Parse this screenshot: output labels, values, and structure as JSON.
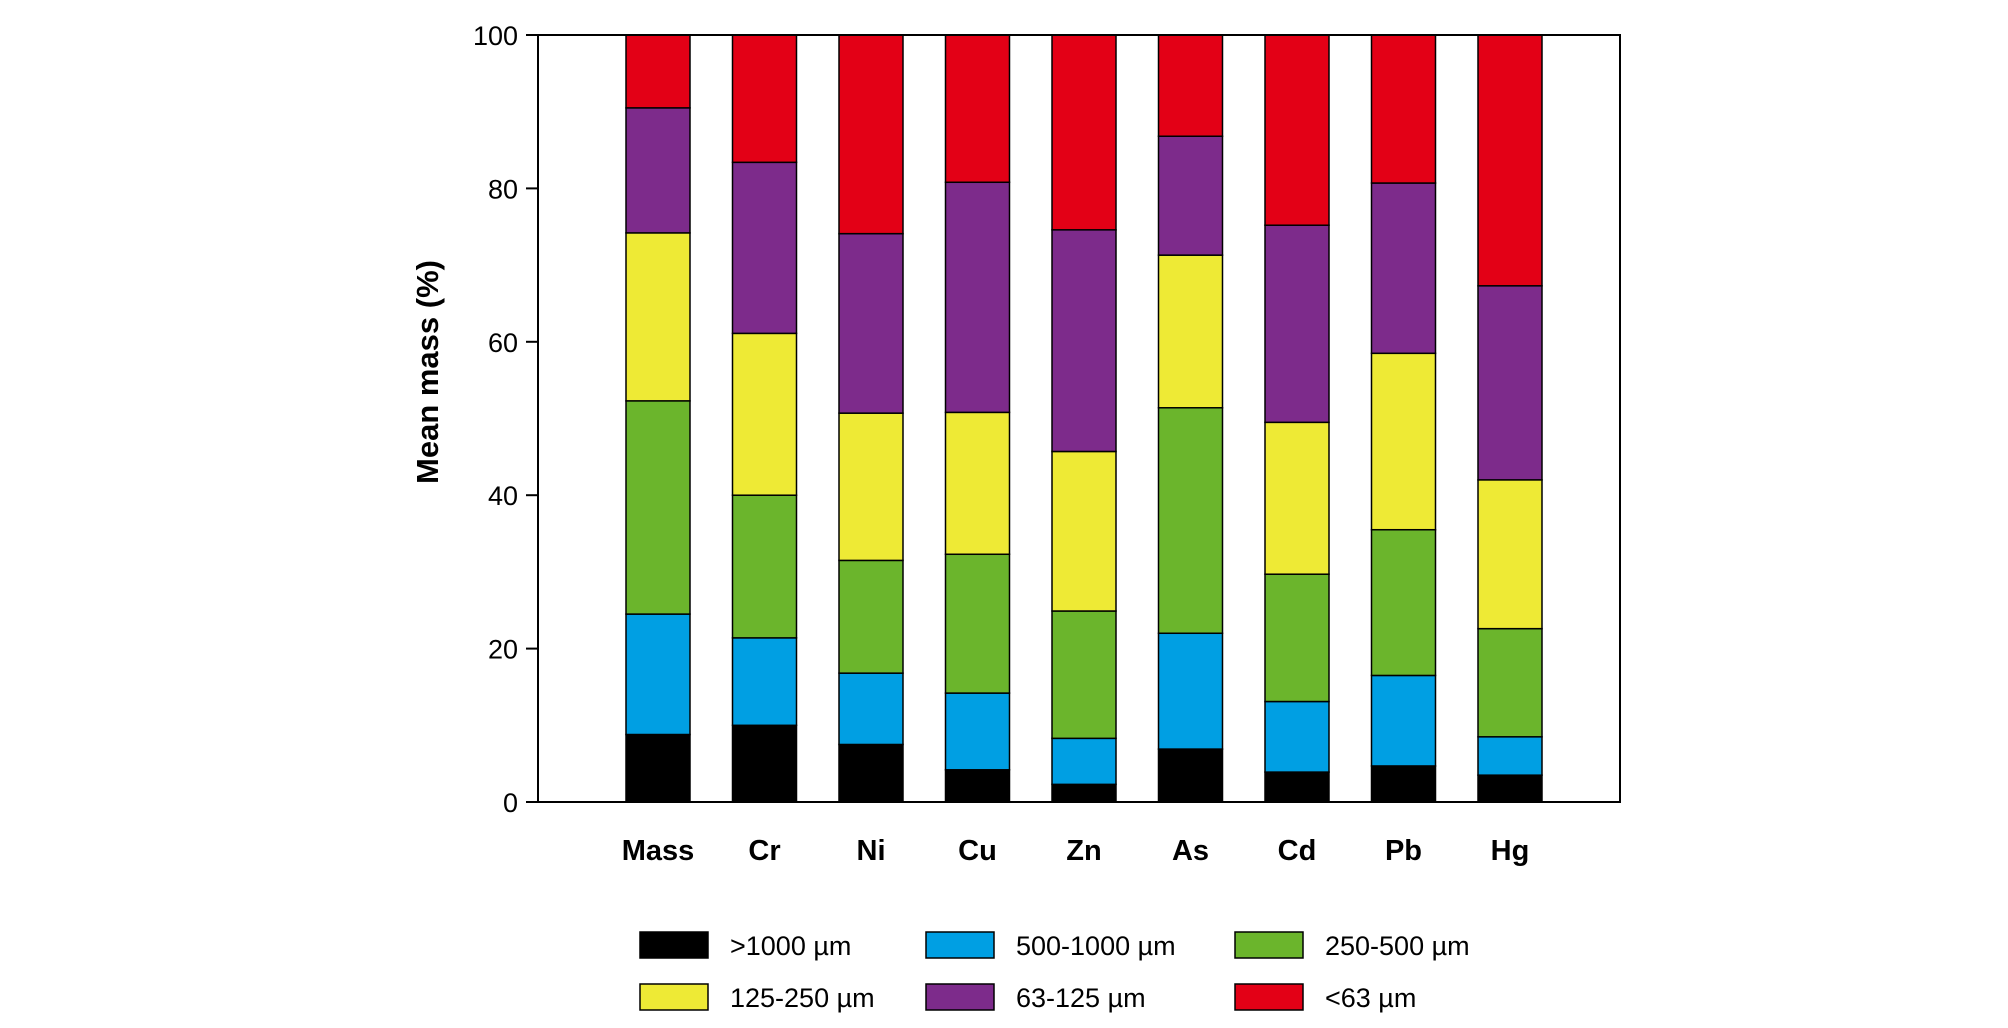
{
  "chart_data": {
    "type": "bar",
    "stacked": true,
    "title": "",
    "xlabel": "",
    "ylabel": "Mean mass (%)",
    "ylim": [
      0,
      100
    ],
    "yticks": [
      0,
      20,
      40,
      60,
      80,
      100
    ],
    "grid": false,
    "legend_position": "bottom",
    "categories": [
      "Mass",
      "Cr",
      "Ni",
      "Cu",
      "Zn",
      "As",
      "Cd",
      "Pb",
      "Hg"
    ],
    "series": [
      {
        "name": ">1000 µm",
        "color": "#000000",
        "values": [
          8.8,
          10.0,
          7.5,
          4.2,
          2.3,
          6.9,
          3.9,
          4.7,
          3.5
        ]
      },
      {
        "name": "500-1000 µm",
        "color": "#009fe3",
        "values": [
          15.7,
          11.4,
          9.3,
          10.0,
          6.0,
          15.1,
          9.2,
          11.8,
          5.0
        ]
      },
      {
        "name": "250-500 µm",
        "color": "#6bb52c",
        "values": [
          27.8,
          18.6,
          14.7,
          18.1,
          16.6,
          29.4,
          16.6,
          19.0,
          14.1
        ]
      },
      {
        "name": "125-250 µm",
        "color": "#eeea35",
        "values": [
          21.9,
          21.1,
          19.2,
          18.5,
          20.8,
          19.9,
          19.8,
          23.0,
          19.4
        ]
      },
      {
        "name": "63-125 µm",
        "color": "#7d2b8b",
        "values": [
          16.3,
          22.3,
          23.4,
          30.0,
          28.9,
          15.5,
          25.7,
          22.2,
          25.3
        ]
      },
      {
        "name": "<63 µm",
        "color": "#e30016",
        "values": [
          9.5,
          16.6,
          25.9,
          19.2,
          25.4,
          13.2,
          24.8,
          19.3,
          32.7
        ]
      }
    ]
  }
}
